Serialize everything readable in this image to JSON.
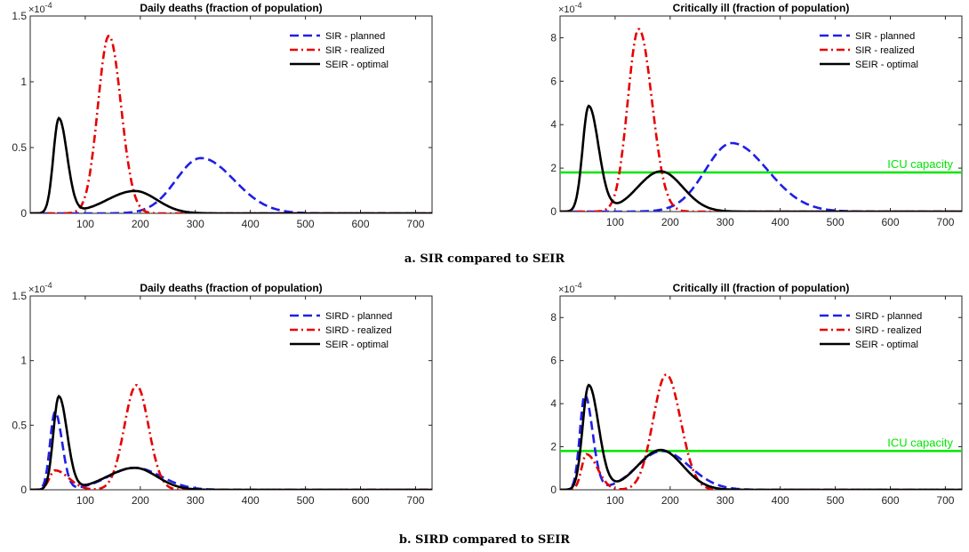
{
  "captions": {
    "a": "a. SIR compared to SEIR",
    "b": "b. SIRD compared to SEIR"
  },
  "colors": {
    "planned": "#1f1fe6",
    "realized": "#e60000",
    "optimal": "#000000",
    "icu": "#00e600"
  },
  "chart_data": [
    {
      "type": "line",
      "title": "Daily deaths (fraction of population)",
      "exponent": "×10",
      "exponent_power": "-4",
      "xlim": [
        0,
        730
      ],
      "ylim": [
        0,
        1.5
      ],
      "xticks": [
        100,
        200,
        300,
        400,
        500,
        600,
        700
      ],
      "yticks": [
        0,
        0.5,
        1,
        1.5
      ],
      "ytick_labels": [
        "0",
        "0.5",
        "1",
        "1.5"
      ],
      "legend_position": "top-right",
      "series": [
        {
          "name": "SIR - planned",
          "style": "dash",
          "color_key": "planned",
          "peaks": [
            {
              "center": 310,
              "height": 0.42,
              "left_width": 45,
              "right_width": 60
            }
          ]
        },
        {
          "name": "SIR - realized",
          "style": "dashdot",
          "color_key": "realized",
          "peaks": [
            {
              "center": 143,
              "height": 1.35,
              "left_width": 20,
              "right_width": 22
            }
          ]
        },
        {
          "name": "SEIR - optimal",
          "style": "solid",
          "color_key": "optimal",
          "peaks": [
            {
              "center": 52,
              "height": 0.72,
              "left_width": 10,
              "right_width": 15
            },
            {
              "center": 190,
              "height": 0.17,
              "left_width": 50,
              "right_width": 40
            }
          ]
        }
      ]
    },
    {
      "type": "line",
      "title": "Critically ill (fraction of population)",
      "exponent": "×10",
      "exponent_power": "-4",
      "xlim": [
        0,
        730
      ],
      "ylim": [
        0,
        9
      ],
      "xticks": [
        100,
        200,
        300,
        400,
        500,
        600,
        700
      ],
      "yticks": [
        0,
        2,
        4,
        6,
        8
      ],
      "ytick_labels": [
        "0",
        "2",
        "4",
        "6",
        "8"
      ],
      "legend_position": "top-right",
      "hline": {
        "y": 1.8,
        "label": "ICU capacity"
      },
      "series": [
        {
          "name": "SIR - planned",
          "style": "dash",
          "color_key": "planned",
          "peaks": [
            {
              "center": 312,
              "height": 3.15,
              "left_width": 48,
              "right_width": 65
            }
          ]
        },
        {
          "name": "SIR - realized",
          "style": "dashdot",
          "color_key": "realized",
          "peaks": [
            {
              "center": 143,
              "height": 8.4,
              "left_width": 20,
              "right_width": 24
            }
          ]
        },
        {
          "name": "SEIR - optimal",
          "style": "solid",
          "color_key": "optimal",
          "peaks": [
            {
              "center": 52,
              "height": 4.85,
              "left_width": 11,
              "right_width": 18
            },
            {
              "center": 183,
              "height": 1.85,
              "left_width": 42,
              "right_width": 40
            }
          ]
        }
      ]
    },
    {
      "type": "line",
      "title": "Daily deaths (fraction of population)",
      "exponent": "×10",
      "exponent_power": "-4",
      "xlim": [
        0,
        730
      ],
      "ylim": [
        0,
        1.5
      ],
      "xticks": [
        100,
        200,
        300,
        400,
        500,
        600,
        700
      ],
      "yticks": [
        0,
        0.5,
        1,
        1.5
      ],
      "ytick_labels": [
        "0",
        "0.5",
        "1",
        "1.5"
      ],
      "legend_position": "top-right",
      "series": [
        {
          "name": "SIRD - planned",
          "style": "dash",
          "color_key": "planned",
          "peaks": [
            {
              "center": 45,
              "height": 0.6,
              "left_width": 9,
              "right_width": 13
            },
            {
              "center": 190,
              "height": 0.17,
              "left_width": 48,
              "right_width": 48
            }
          ]
        },
        {
          "name": "SIRD - realized",
          "style": "dashdot",
          "color_key": "realized",
          "peaks": [
            {
              "center": 45,
              "height": 0.15,
              "left_width": 10,
              "right_width": 25
            },
            {
              "center": 193,
              "height": 0.81,
              "left_width": 22,
              "right_width": 22
            }
          ]
        },
        {
          "name": "SEIR - optimal",
          "style": "solid",
          "color_key": "optimal",
          "peaks": [
            {
              "center": 52,
              "height": 0.72,
              "left_width": 10,
              "right_width": 15
            },
            {
              "center": 190,
              "height": 0.17,
              "left_width": 50,
              "right_width": 40
            }
          ]
        }
      ]
    },
    {
      "type": "line",
      "title": "Critically ill (fraction of population)",
      "exponent": "×10",
      "exponent_power": "-4",
      "xlim": [
        0,
        730
      ],
      "ylim": [
        0,
        9
      ],
      "xticks": [
        100,
        200,
        300,
        400,
        500,
        600,
        700
      ],
      "yticks": [
        0,
        2,
        4,
        6,
        8
      ],
      "ytick_labels": [
        "0",
        "2",
        "4",
        "6",
        "8"
      ],
      "legend_position": "top-right",
      "hline": {
        "y": 1.8,
        "label": "ICU capacity"
      },
      "series": [
        {
          "name": "SIRD - planned",
          "style": "dash",
          "color_key": "planned",
          "peaks": [
            {
              "center": 45,
              "height": 4.4,
              "left_width": 9,
              "right_width": 14
            },
            {
              "center": 185,
              "height": 1.8,
              "left_width": 45,
              "right_width": 50
            }
          ]
        },
        {
          "name": "SIRD - realized",
          "style": "dashdot",
          "color_key": "realized",
          "peaks": [
            {
              "center": 48,
              "height": 1.65,
              "left_width": 9,
              "right_width": 20
            },
            {
              "center": 193,
              "height": 5.35,
              "left_width": 24,
              "right_width": 26
            }
          ]
        },
        {
          "name": "SEIR - optimal",
          "style": "solid",
          "color_key": "optimal",
          "peaks": [
            {
              "center": 52,
              "height": 4.85,
              "left_width": 11,
              "right_width": 18
            },
            {
              "center": 183,
              "height": 1.85,
              "left_width": 42,
              "right_width": 40
            }
          ]
        }
      ]
    }
  ]
}
